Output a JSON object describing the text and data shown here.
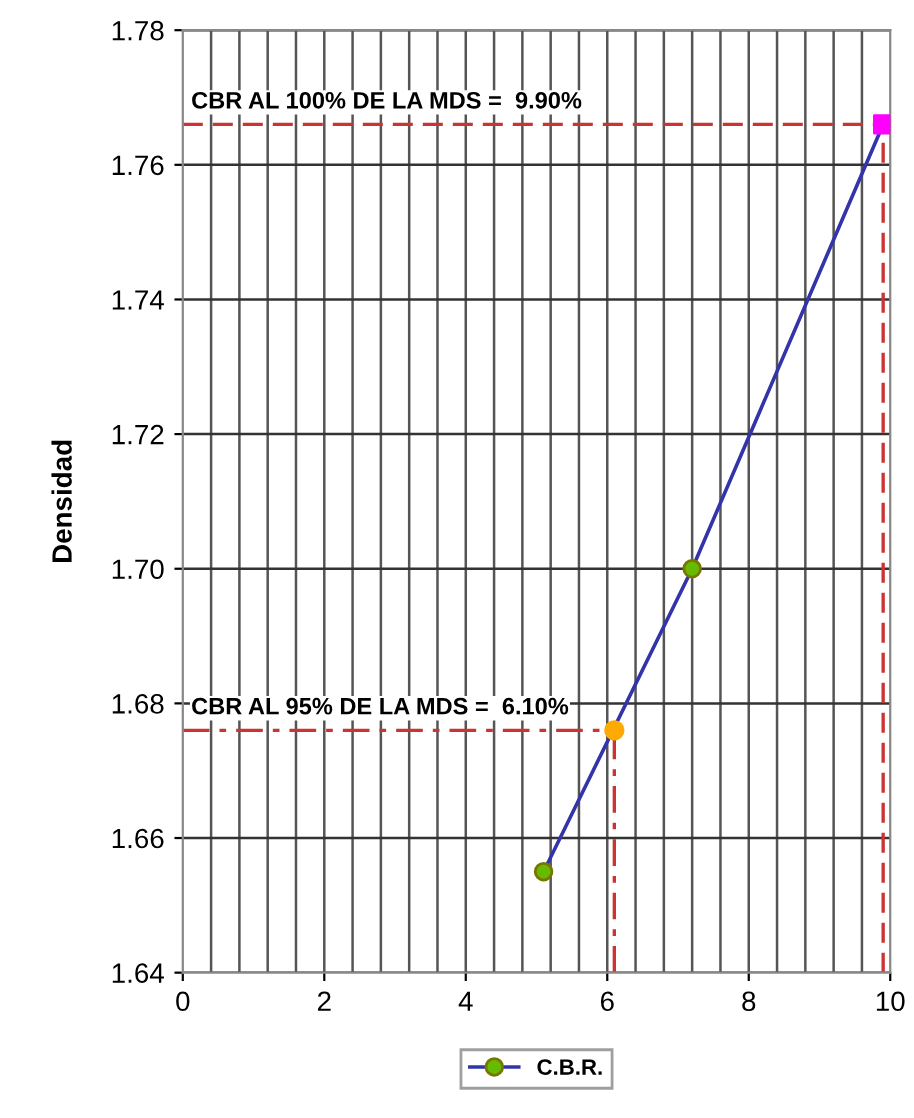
{
  "chart_data": {
    "type": "line",
    "ylabel": "Densidad",
    "xlim": [
      0,
      10
    ],
    "xticks": [
      0,
      2,
      4,
      6,
      8,
      10
    ],
    "ylim": [
      1.64,
      1.78
    ],
    "yticks": [
      1.64,
      1.66,
      1.68,
      {
        "value": 1.7,
        "label": "1.70"
      },
      1.72,
      1.74,
      1.76,
      1.78
    ],
    "grid": true,
    "legend": "bottom",
    "series": [
      {
        "name": "C.B.R.",
        "color": "#3333aa",
        "marker": "circle",
        "colors": [
          "#66bb00",
          "#66bb00",
          "#ff00ff"
        ],
        "x": [
          5.1,
          7.2,
          9.9
        ],
        "values": [
          1.655,
          1.7,
          1.766
        ]
      },
      {
        "type": "scatter",
        "color": "#ffaa00",
        "marker": "circle",
        "x": [
          6.1
        ],
        "values": [
          1.676
        ]
      },
      {
        "type": "scatter",
        "color": "#ff00ff",
        "marker": "square",
        "x": [
          9.9
        ],
        "values": [
          1.766
        ]
      }
    ],
    "ref_lines": [
      {
        "axis": "y",
        "value": 1.766,
        "color": "#cc3333",
        "line_style": "dashed"
      },
      {
        "axis": "x",
        "value": 9.9,
        "color": "#cc3333",
        "line_style": "dashed"
      },
      {
        "axis": "y",
        "value": 1.676,
        "color": "#cc3333",
        "line_style": "dashdot"
      },
      {
        "axis": "x",
        "value": 6.1,
        "color": "#cc3333",
        "line_style": "dashdot"
      }
    ],
    "annotations": [
      "CBR AL 100% DE LA MDS =  9.90%",
      "CBR AL 95% DE LA MDS =  6.10%"
    ]
  }
}
